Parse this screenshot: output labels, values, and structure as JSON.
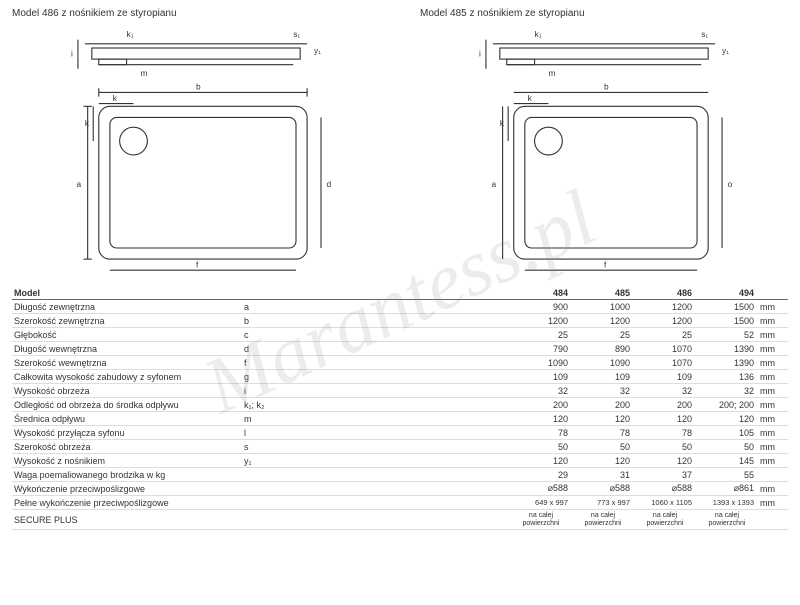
{
  "diagrams": {
    "left_title": "Model 486 z nośnikiem ze styropianu",
    "right_title": "Model 485 z nośnikiem ze styropianu"
  },
  "watermark": "Marantess.pl",
  "table": {
    "header": {
      "label": "Model",
      "symbol": "",
      "cols": [
        "484",
        "485",
        "486",
        "494"
      ],
      "unit": ""
    },
    "rows": [
      {
        "label": "Długość zewnętrzna",
        "symbol": "a",
        "vals": [
          "900",
          "1000",
          "1200",
          "1500"
        ],
        "unit": "mm"
      },
      {
        "label": "Szerokość zewnętrzna",
        "symbol": "b",
        "vals": [
          "1200",
          "1200",
          "1200",
          "1500"
        ],
        "unit": "mm"
      },
      {
        "label": "Głębokość",
        "symbol": "c",
        "vals": [
          "25",
          "25",
          "25",
          "52"
        ],
        "unit": "mm"
      },
      {
        "label": "Długość wewnętrzna",
        "symbol": "d",
        "vals": [
          "790",
          "890",
          "1070",
          "1390"
        ],
        "unit": "mm"
      },
      {
        "label": "Szerokość wewnętrzna",
        "symbol": "f",
        "vals": [
          "1090",
          "1090",
          "1070",
          "1390"
        ],
        "unit": "mm"
      },
      {
        "label": "Całkowita wysokość zabudowy z syfonem",
        "symbol": "g",
        "vals": [
          "109",
          "109",
          "109",
          "136"
        ],
        "unit": "mm"
      },
      {
        "label": "Wysokość obrzeża",
        "symbol": "i",
        "vals": [
          "32",
          "32",
          "32",
          "32"
        ],
        "unit": "mm"
      },
      {
        "label": "Odległość od obrzeża do środka odpływu",
        "symbol": "k₁; k₂",
        "vals": [
          "200",
          "200",
          "200",
          "200; 200"
        ],
        "unit": "mm"
      },
      {
        "label": "Średnica odpływu",
        "symbol": "m",
        "vals": [
          "120",
          "120",
          "120",
          "120"
        ],
        "unit": "mm"
      },
      {
        "label": "Wysokość przyłącza syfonu",
        "symbol": "l",
        "vals": [
          "78",
          "78",
          "78",
          "105"
        ],
        "unit": "mm"
      },
      {
        "label": "Szerokość obrzeża",
        "symbol": "s",
        "vals": [
          "50",
          "50",
          "50",
          "50"
        ],
        "unit": "mm"
      },
      {
        "label": "Wysokość z nośnikiem",
        "symbol": "y₁",
        "vals": [
          "120",
          "120",
          "120",
          "145"
        ],
        "unit": "mm"
      },
      {
        "label": "Waga poemaliowanego brodzika w kg",
        "symbol": "",
        "vals": [
          "29",
          "31",
          "37",
          "55"
        ],
        "unit": ""
      },
      {
        "label": "Wykończenie przeciwpoślizgowe",
        "symbol": "",
        "vals": [
          "⌀588",
          "⌀588",
          "⌀588",
          "⌀861"
        ],
        "unit": "mm"
      },
      {
        "label": "Pełne wykończenie przeciwpoślizgowe",
        "symbol": "",
        "vals": [
          "649 x 997",
          "773 x 997",
          "1060 x 1105",
          "1393 x 1393"
        ],
        "unit": "mm"
      },
      {
        "label": "SECURE PLUS",
        "symbol": "",
        "vals": [
          "na całej powierzchni",
          "na całej powierzchni",
          "na całej powierzchni",
          "na całej powierzchni"
        ],
        "unit": ""
      }
    ]
  },
  "colors": {
    "line": "#333333",
    "grid": "#dddddd",
    "bg": "#ffffff"
  }
}
